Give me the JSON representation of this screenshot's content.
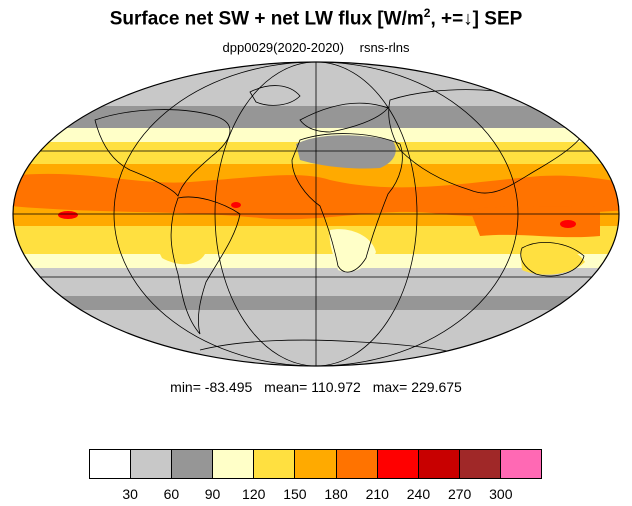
{
  "title": {
    "main_prefix": "Surface net SW + net LW flux [W/m",
    "superscript": "2",
    "main_suffix": ", +=↓]  SEP"
  },
  "subtitle": {
    "left": "dpp0029(2020-2020)",
    "right": "rsns-rlns"
  },
  "stats": {
    "min": "min= -83.495",
    "mean": "mean= 110.972",
    "max": "max= 229.675"
  },
  "colorbar": {
    "colors": [
      "#ffffff",
      "#c8c8c8",
      "#969696",
      "#ffffc8",
      "#ffe040",
      "#ffaa00",
      "#ff7300",
      "#ff0000",
      "#c80000",
      "#a02828",
      "#ff69b4"
    ],
    "labels": [
      "30",
      "60",
      "90",
      "120",
      "150",
      "180",
      "210",
      "240",
      "270",
      "300"
    ]
  },
  "legend_colors": {
    "background": "#ffffff",
    "white": "#ffffff",
    "light_gray": "#c8c8c8",
    "gray": "#969696",
    "pale_yellow": "#ffffc8",
    "yellow": "#ffe040",
    "orange": "#ffaa00",
    "dark_orange": "#ff7300",
    "red": "#ff0000"
  }
}
